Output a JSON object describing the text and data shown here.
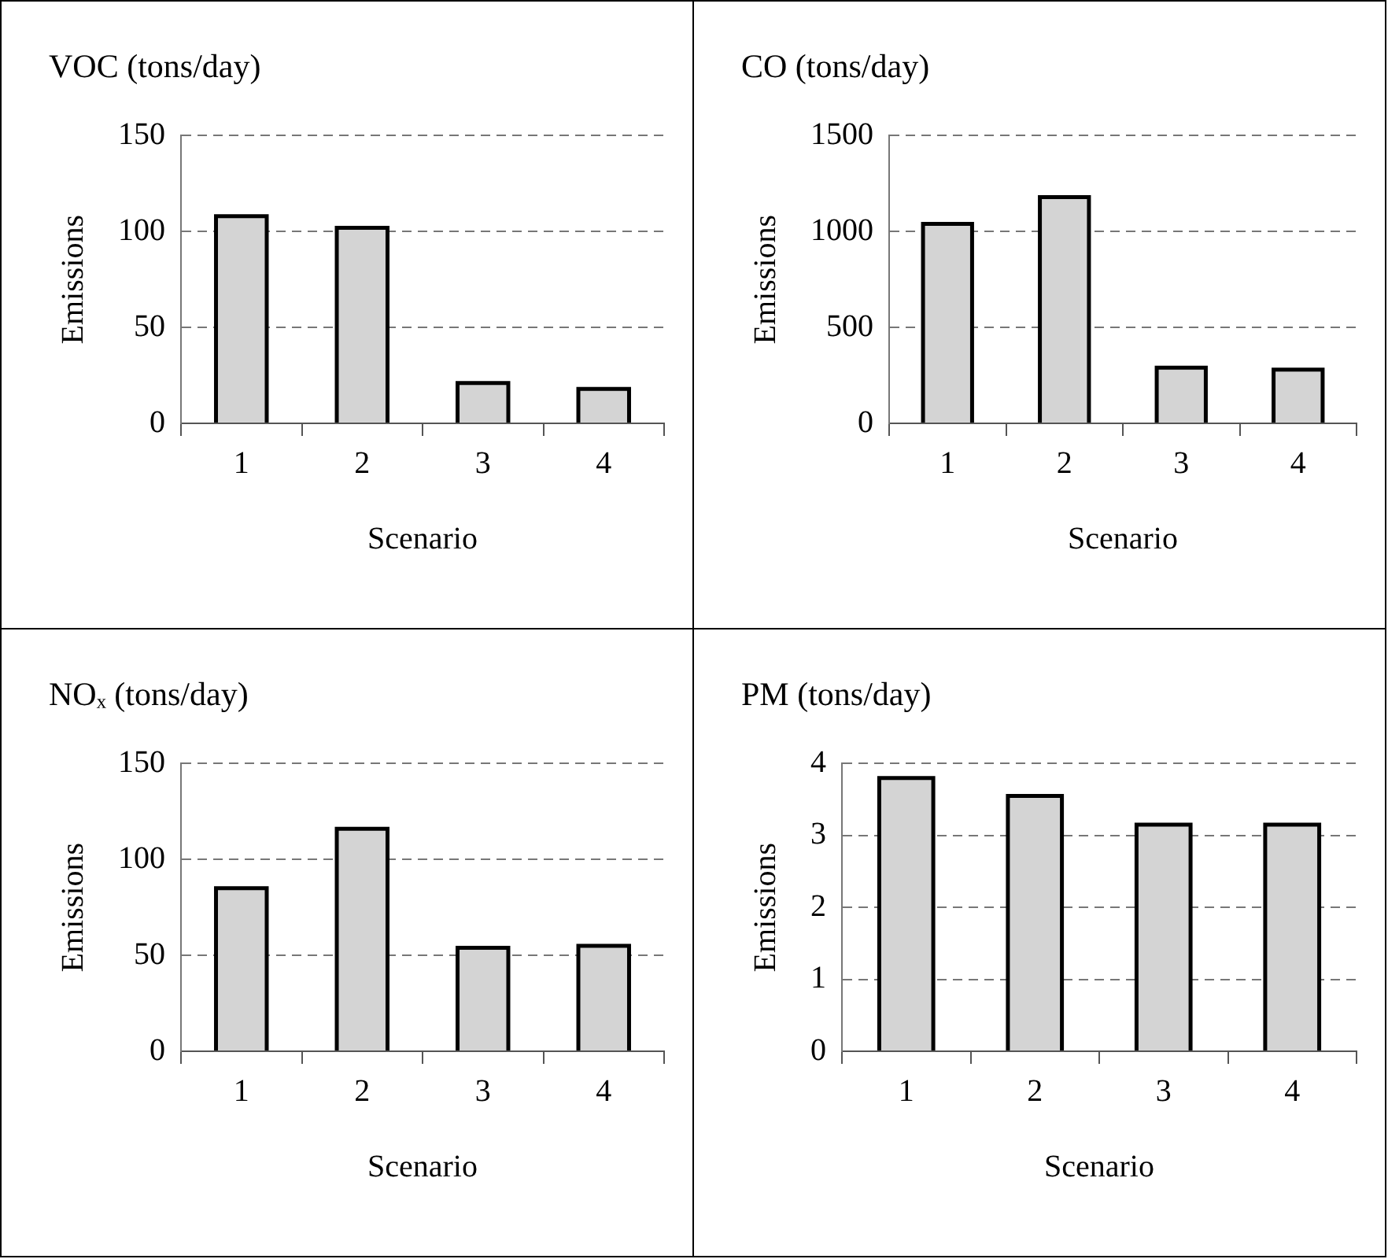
{
  "chart_data": [
    {
      "type": "bar",
      "title": "VOC (tons/day)",
      "xlabel": "Scenario",
      "ylabel": "Emissions",
      "categories": [
        "1",
        "2",
        "3",
        "4"
      ],
      "values": [
        108,
        102,
        21,
        18
      ],
      "color": "#d4d4d4",
      "ylim": [
        0,
        150
      ],
      "yticks": [
        0,
        50,
        100,
        150
      ],
      "grid": "y",
      "legend": false
    },
    {
      "type": "bar",
      "title": "CO (tons/day)",
      "xlabel": "Scenario",
      "ylabel": "Emissions",
      "categories": [
        "1",
        "2",
        "3",
        "4"
      ],
      "values": [
        1040,
        1180,
        290,
        280
      ],
      "color": "#d4d4d4",
      "ylim": [
        0,
        1500
      ],
      "yticks": [
        0,
        500,
        1000,
        1500
      ],
      "grid": "y",
      "legend": false
    },
    {
      "type": "bar",
      "title": "NOₓ (tons/day)",
      "xlabel": "Scenario",
      "ylabel": "Emissions",
      "categories": [
        "1",
        "2",
        "3",
        "4"
      ],
      "values": [
        85,
        116,
        54,
        55
      ],
      "color": "#d4d4d4",
      "ylim": [
        0,
        150
      ],
      "yticks": [
        0,
        50,
        100,
        150
      ],
      "grid": "y",
      "legend": false
    },
    {
      "type": "bar",
      "title": "PM (tons/day)",
      "xlabel": "Scenario",
      "ylabel": "Emissions",
      "categories": [
        "1",
        "2",
        "3",
        "4"
      ],
      "values": [
        3.8,
        3.55,
        3.15,
        3.15
      ],
      "color": "#d4d4d4",
      "ylim": [
        0,
        4
      ],
      "yticks": [
        0,
        1,
        2,
        3,
        4
      ],
      "grid": "y",
      "legend": false
    }
  ]
}
